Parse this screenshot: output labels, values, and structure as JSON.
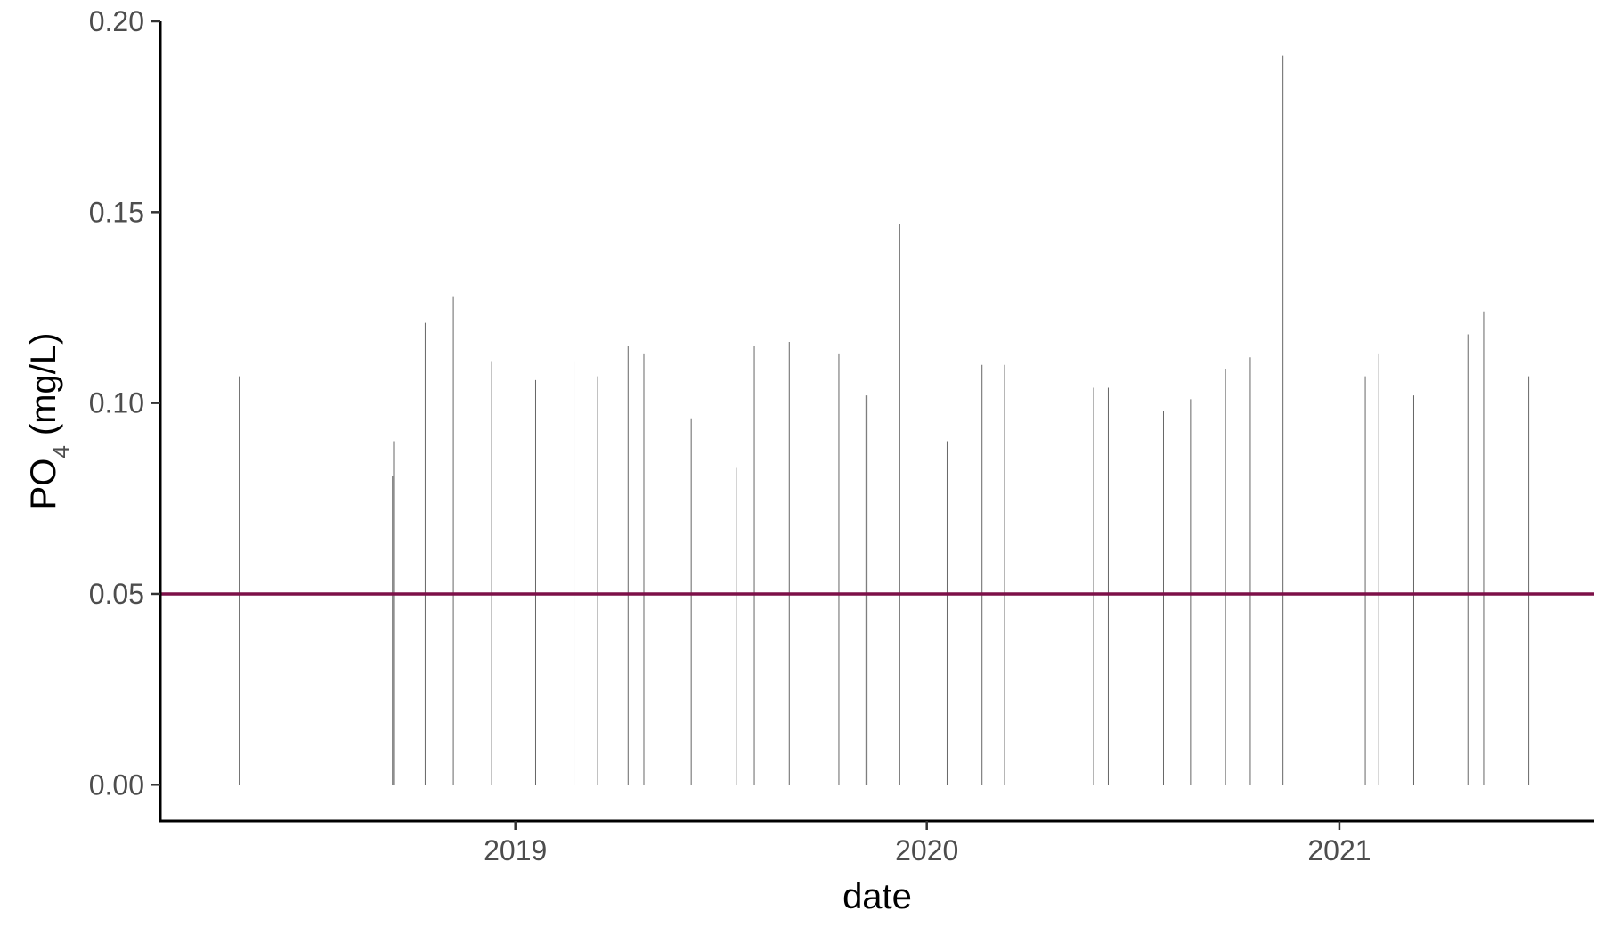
{
  "chart_data": {
    "type": "bar",
    "title": "",
    "xlabel": "date",
    "ylabel": {
      "main": "PO",
      "sub": "4",
      "rest": " (mg/L)"
    },
    "x_ticks": [
      "2019",
      "2020",
      "2021"
    ],
    "x_tick_dates": [
      "2019-01-01",
      "2020-01-01",
      "2021-01-01"
    ],
    "xlim": [
      "2018-02-20",
      "2021-08-15"
    ],
    "y_ticks": [
      "0.00",
      "0.05",
      "0.10",
      "0.15",
      "0.20"
    ],
    "y_tick_values": [
      0.0,
      0.05,
      0.1,
      0.15,
      0.2
    ],
    "ylim": [
      -0.0095,
      0.2
    ],
    "grid": false,
    "legend": "none",
    "reference_line": {
      "y": 0.05,
      "color": "#7d1048"
    },
    "bar_color": "#333333",
    "points": [
      {
        "date": "2018-05-01",
        "value": 0.107
      },
      {
        "date": "2018-09-14",
        "value": 0.081
      },
      {
        "date": "2018-09-15",
        "value": 0.09
      },
      {
        "date": "2018-10-13",
        "value": 0.121
      },
      {
        "date": "2018-11-07",
        "value": 0.128
      },
      {
        "date": "2018-12-11",
        "value": 0.111
      },
      {
        "date": "2019-01-19",
        "value": 0.106
      },
      {
        "date": "2019-02-22",
        "value": 0.111
      },
      {
        "date": "2019-03-15",
        "value": 0.107
      },
      {
        "date": "2019-04-11",
        "value": 0.115
      },
      {
        "date": "2019-04-25",
        "value": 0.113
      },
      {
        "date": "2019-06-06",
        "value": 0.096
      },
      {
        "date": "2019-07-16",
        "value": 0.083
      },
      {
        "date": "2019-08-01",
        "value": 0.115
      },
      {
        "date": "2019-09-01",
        "value": 0.116
      },
      {
        "date": "2019-10-15",
        "value": 0.113
      },
      {
        "date": "2019-11-08",
        "value": 0.102
      },
      {
        "date": "2019-11-09",
        "value": 0.102
      },
      {
        "date": "2019-12-08",
        "value": 0.147
      },
      {
        "date": "2020-01-19",
        "value": 0.09
      },
      {
        "date": "2020-02-19",
        "value": 0.11
      },
      {
        "date": "2020-03-10",
        "value": 0.11
      },
      {
        "date": "2020-05-28",
        "value": 0.104
      },
      {
        "date": "2020-06-10",
        "value": 0.104
      },
      {
        "date": "2020-07-29",
        "value": 0.098
      },
      {
        "date": "2020-08-22",
        "value": 0.101
      },
      {
        "date": "2020-09-22",
        "value": 0.109
      },
      {
        "date": "2020-10-14",
        "value": 0.112
      },
      {
        "date": "2020-11-12",
        "value": 0.191
      },
      {
        "date": "2021-01-24",
        "value": 0.107
      },
      {
        "date": "2021-02-05",
        "value": 0.113
      },
      {
        "date": "2021-03-08",
        "value": 0.102
      },
      {
        "date": "2021-04-25",
        "value": 0.118
      },
      {
        "date": "2021-05-09",
        "value": 0.124
      },
      {
        "date": "2021-06-18",
        "value": 0.107
      }
    ]
  }
}
